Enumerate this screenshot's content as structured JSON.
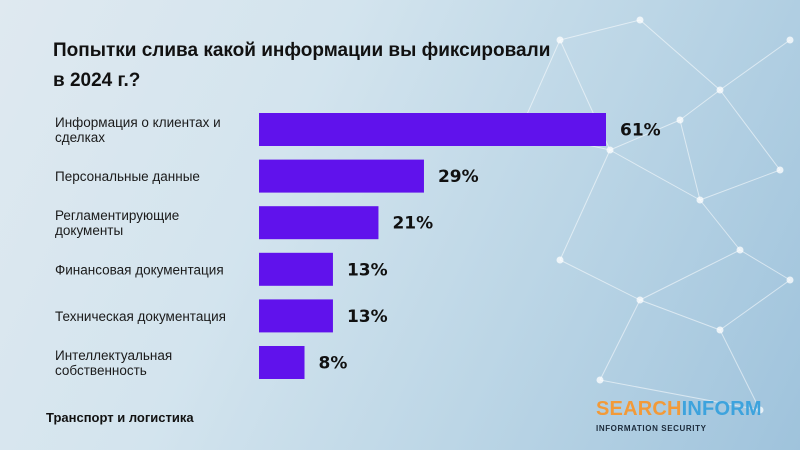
{
  "title": {
    "line1": "Попытки слива какой информации вы фиксировали",
    "line2": "в 2024 г.?"
  },
  "footer": "Транспорт и логистика",
  "logo": {
    "part1": "SEARCH",
    "part2": "INFORM",
    "tagline": "INFORMATION SECURITY"
  },
  "colors": {
    "bar": "#6012ec",
    "logo_orange": "#f29a38",
    "logo_blue": "#3da3dd"
  },
  "chart_data": {
    "type": "bar",
    "orientation": "horizontal",
    "title": "Попытки слива какой информации вы фиксировали в 2024 г.?",
    "categories": [
      [
        "Информация о клиентах и",
        "сделках"
      ],
      [
        "Персональные данные"
      ],
      [
        "Регламентирующие",
        "документы"
      ],
      [
        "Финансовая документация"
      ],
      [
        "Техническая документация"
      ],
      [
        "Интеллектуальная",
        "собственность"
      ]
    ],
    "values": [
      61,
      29,
      21,
      13,
      13,
      8
    ],
    "value_labels": [
      "61%",
      "29%",
      "21%",
      "13%",
      "13%",
      "8%"
    ],
    "xlim": [
      0,
      100
    ],
    "grid": false,
    "legend": "none"
  }
}
